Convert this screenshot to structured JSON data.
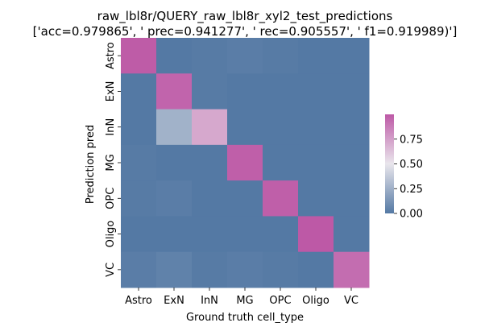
{
  "chart_data": {
    "type": "heatmap",
    "title_line1": "raw_lbl8r/QUERY_raw_lbl8r_xyl2_test_predictions",
    "title_line2": "['acc=0.979865', ' prec=0.941277', ' rec=0.905557', ' f1=0.919989)']",
    "xlabel": "Ground truth cell_type",
    "ylabel": "Prediction pred",
    "x_categories": [
      "Astro",
      "ExN",
      "InN",
      "MG",
      "OPC",
      "Oligo",
      "VC"
    ],
    "y_categories": [
      "Astro",
      "ExN",
      "InN",
      "MG",
      "OPC",
      "Oligo",
      "VC"
    ],
    "values": [
      [
        0.99,
        0.0,
        0.01,
        0.02,
        0.01,
        0.0,
        0.0
      ],
      [
        0.0,
        0.96,
        0.01,
        0.0,
        0.0,
        0.0,
        0.0
      ],
      [
        0.0,
        0.26,
        0.72,
        0.0,
        0.0,
        0.0,
        0.0
      ],
      [
        0.01,
        0.0,
        0.0,
        0.98,
        0.0,
        0.0,
        0.0
      ],
      [
        0.01,
        0.02,
        0.0,
        0.0,
        0.98,
        0.0,
        0.0
      ],
      [
        0.0,
        0.0,
        0.0,
        0.0,
        0.0,
        1.0,
        0.0
      ],
      [
        0.02,
        0.04,
        0.01,
        0.02,
        0.01,
        0.0,
        0.93
      ]
    ],
    "colorbar": {
      "min": 0.0,
      "max": 1.0,
      "ticks": [
        0.0,
        0.25,
        0.5,
        0.75
      ],
      "tick_labels": [
        "0.00",
        "0.25",
        "0.50",
        "0.75"
      ],
      "colors": [
        "#5479a4",
        "#e9e6ec",
        "#bd59a6"
      ]
    },
    "grid": false
  }
}
